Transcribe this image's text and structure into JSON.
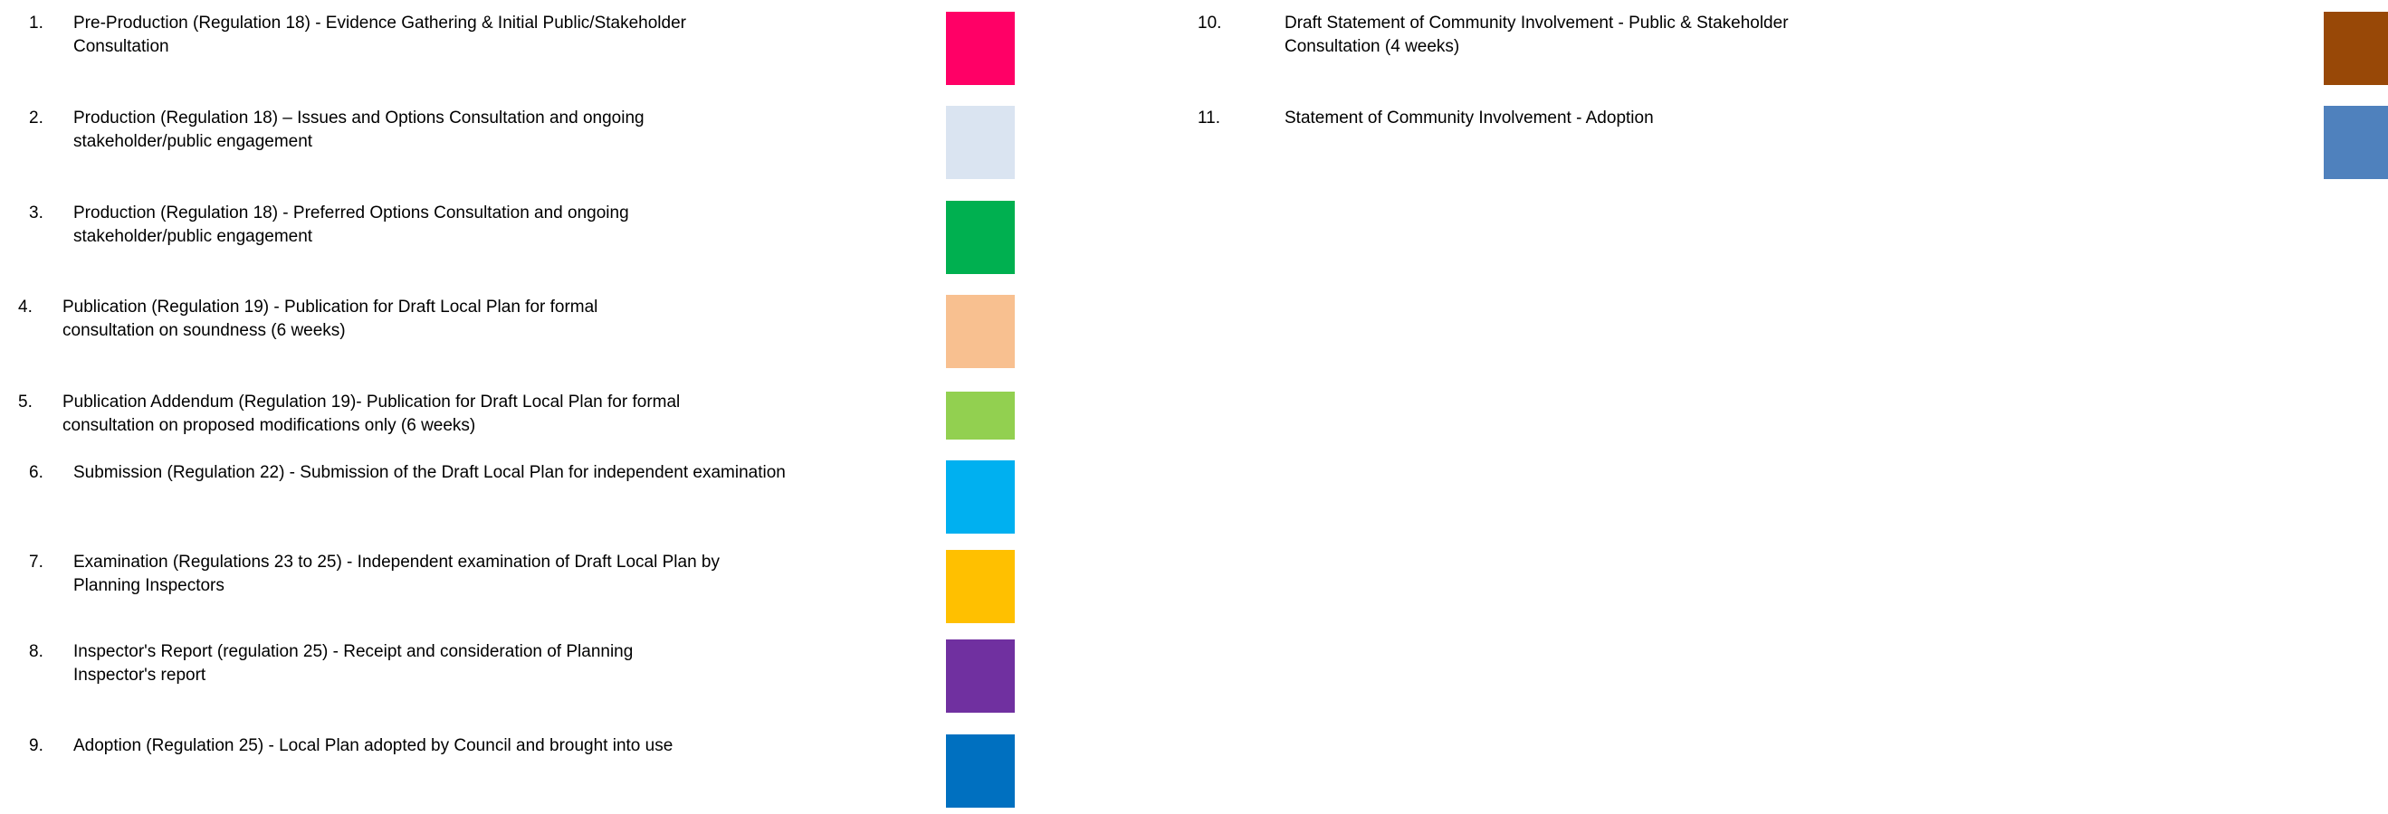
{
  "legend": {
    "left_column": [
      {
        "number": "1.",
        "label": "Pre-Production (Regulation 18) - Evidence Gathering & Initial Public/Stakeholder Consultation",
        "color": "#FF0066"
      },
      {
        "number": "2.",
        "label": "Production (Regulation 18) – Issues and Options Consultation and ongoing stakeholder/public engagement",
        "color": "#DAE4F1"
      },
      {
        "number": "3.",
        "label": "Production (Regulation 18) - Preferred Options Consultation and ongoing stakeholder/public engagement",
        "color": "#00B050"
      },
      {
        "number": "4.",
        "label": "Publication (Regulation 19) - Publication for Draft Local Plan for formal consultation on soundness (6 weeks)",
        "color": "#F8C090"
      },
      {
        "number": "5.",
        "label": "Publication Addendum (Regulation 19)- Publication for Draft Local Plan for formal consultation on proposed modifications only (6 weeks)",
        "color": "#92D050"
      },
      {
        "number": "6.",
        "label": "Submission (Regulation 22) - Submission of the Draft Local Plan for independent examination",
        "color": "#00B0F0"
      },
      {
        "number": "7.",
        "label": "Examination (Regulations 23 to 25) - Independent examination of Draft Local Plan by Planning Inspectors",
        "color": "#FFC000"
      },
      {
        "number": "8.",
        "label": "Inspector's Report (regulation 25) - Receipt and consideration of Planning Inspector's report",
        "color": "#7030A0"
      },
      {
        "number": "9.",
        "label": "Adoption (Regulation 25) - Local Plan adopted by Council and brought into use",
        "color": "#0070C0"
      }
    ],
    "right_column": [
      {
        "number": "10.",
        "label": "Draft Statement of Community Involvement - Public & Stakeholder Consultation (4 weeks)",
        "color": "#984807"
      },
      {
        "number": "11.",
        "label": "Statement of Community Involvement - Adoption",
        "color": "#4F81BD"
      }
    ]
  }
}
